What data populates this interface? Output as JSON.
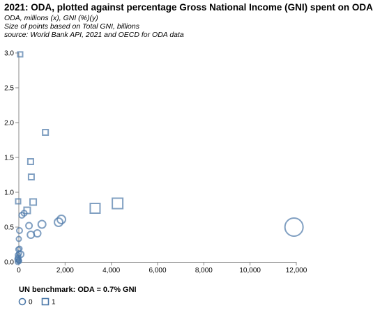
{
  "chart_data": {
    "type": "scatter",
    "title": "2021: ODA, plotted against percentage Gross National Income (GNI) spent on ODA",
    "subtitles": [
      "ODA, millions (x), GNI (%)(y)",
      "Size of points based on Total GNI, billions",
      "source: World Bank API, 2021 and OECD for ODA data"
    ],
    "xlim": [
      0,
      12000
    ],
    "ylim": [
      0,
      3.0
    ],
    "x_ticks": [
      0,
      2000,
      4000,
      6000,
      8000,
      10000,
      12000
    ],
    "x_tick_labels": [
      "0",
      "2,000",
      "4,000",
      "6,000",
      "8,000",
      "10,000",
      "12,000"
    ],
    "y_ticks": [
      0,
      0.5,
      1.0,
      1.5,
      2.0,
      2.5,
      3.0
    ],
    "y_tick_labels": [
      "0.0",
      "0.5",
      "1.0",
      "1.5",
      "2.0",
      "2.5",
      "3.0"
    ],
    "grid": false,
    "legend": {
      "title": "UN benchmark: ODA = 0.7% GNI",
      "placement": "bottom-left",
      "entries": [
        {
          "label": "0",
          "shape": "circle"
        },
        {
          "label": "1",
          "shape": "square"
        }
      ]
    },
    "color": "#4c78a8",
    "points": [
      {
        "x": 60,
        "y": 2.98,
        "size": 7,
        "group": 1
      },
      {
        "x": 1150,
        "y": 1.86,
        "size": 8,
        "group": 1
      },
      {
        "x": 510,
        "y": 1.44,
        "size": 8,
        "group": 1
      },
      {
        "x": 540,
        "y": 1.22,
        "size": 8,
        "group": 1
      },
      {
        "x": -30,
        "y": 0.87,
        "size": 7,
        "group": 1
      },
      {
        "x": 620,
        "y": 0.86,
        "size": 9,
        "group": 1
      },
      {
        "x": 360,
        "y": 0.74,
        "size": 9,
        "group": 1
      },
      {
        "x": 3300,
        "y": 0.77,
        "size": 14,
        "group": 1
      },
      {
        "x": 4270,
        "y": 0.84,
        "size": 15,
        "group": 1
      },
      {
        "x": 130,
        "y": 0.67,
        "size": 8,
        "group": 0
      },
      {
        "x": 230,
        "y": 0.7,
        "size": 8,
        "group": 0
      },
      {
        "x": 30,
        "y": 0.45,
        "size": 8,
        "group": 0
      },
      {
        "x": 440,
        "y": 0.52,
        "size": 9,
        "group": 0
      },
      {
        "x": 520,
        "y": 0.39,
        "size": 10,
        "group": 0
      },
      {
        "x": 800,
        "y": 0.41,
        "size": 10,
        "group": 0
      },
      {
        "x": 1000,
        "y": 0.54,
        "size": 11,
        "group": 0
      },
      {
        "x": 1720,
        "y": 0.57,
        "size": 12,
        "group": 0
      },
      {
        "x": 1840,
        "y": 0.61,
        "size": 12,
        "group": 0
      },
      {
        "x": 11900,
        "y": 0.5,
        "size": 26,
        "group": 0
      },
      {
        "x": 0,
        "y": 0.33,
        "size": 7,
        "group": 0
      },
      {
        "x": 30,
        "y": 0.19,
        "size": 7,
        "group": 0
      },
      {
        "x": -20,
        "y": 0.18,
        "size": 7,
        "group": 0
      },
      {
        "x": 80,
        "y": 0.11,
        "size": 9,
        "group": 0
      },
      {
        "x": 10,
        "y": 0.12,
        "size": 7,
        "group": 0
      },
      {
        "x": -40,
        "y": 0.1,
        "size": 7,
        "group": 0
      },
      {
        "x": -30,
        "y": 0.06,
        "size": 8,
        "group": 0
      },
      {
        "x": -60,
        "y": 0.04,
        "size": 7,
        "group": 0
      },
      {
        "x": -10,
        "y": 0.03,
        "size": 7,
        "group": 0
      },
      {
        "x": 10,
        "y": 0.01,
        "size": 7,
        "group": 0
      },
      {
        "x": -50,
        "y": 0.0,
        "size": 7,
        "group": 0
      },
      {
        "x": 0,
        "y": 0.02,
        "size": 7,
        "group": 0
      }
    ]
  }
}
